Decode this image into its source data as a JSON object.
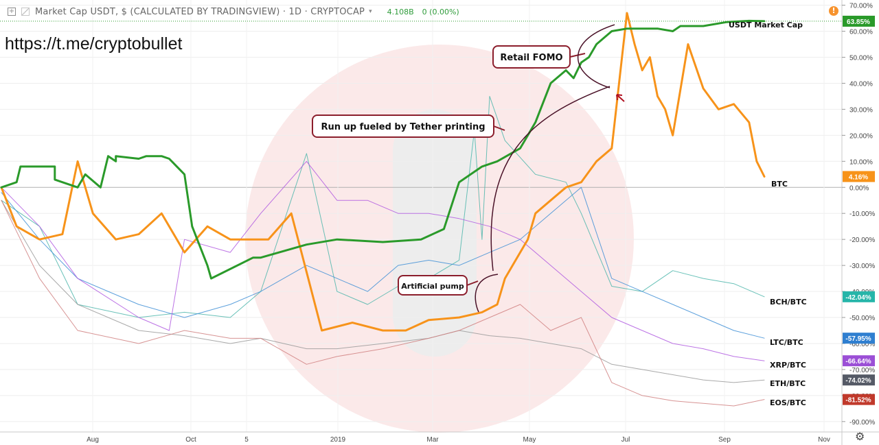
{
  "header": {
    "symbol": "Market Cap USDT, $ (CALCULATED BY TRADINGVIEW) · 1D · CRYPTOCAP",
    "value": "4.108B",
    "change": "0 (0.00%)"
  },
  "alert_icon": "!",
  "watermark": "https://t.me/cryptobullet",
  "settings_icon": "gear-icon",
  "chart_data": {
    "type": "line",
    "x_ticks": [
      "Aug",
      "Oct",
      "5",
      "2019",
      "Mar",
      "May",
      "Jul",
      "Sep",
      "Nov"
    ],
    "y_ticks": [
      70,
      60,
      50,
      40,
      30,
      20,
      10,
      0,
      -10,
      -20,
      -30,
      -40,
      -50,
      -60,
      -70,
      -80,
      -90
    ],
    "y_unit": "%",
    "ylim": [
      -94,
      72
    ],
    "grid": true,
    "series": [
      {
        "name": "USDT Market Cap",
        "color": "#2a9a2a",
        "last_label": "63.85%",
        "label_color": "#2a9a2a",
        "x": [
          0,
          0.02,
          0.025,
          0.07,
          0.07,
          0.1,
          0.11,
          0.13,
          0.14,
          0.15,
          0.15,
          0.18,
          0.19,
          0.21,
          0.22,
          0.24,
          0.25,
          0.27,
          0.275,
          0.33,
          0.34,
          0.4,
          0.44,
          0.5,
          0.55,
          0.58,
          0.6,
          0.63,
          0.65,
          0.68,
          0.7,
          0.72,
          0.74,
          0.75,
          0.76,
          0.77,
          0.78,
          0.8,
          0.82,
          0.84,
          0.86,
          0.88,
          0.89,
          0.9,
          0.92,
          0.95,
          0.98,
          1.0
        ],
        "y": [
          0,
          2,
          8,
          8,
          3,
          0,
          5,
          0,
          12,
          10,
          12,
          11,
          12,
          12,
          11,
          5,
          -15,
          -30,
          -35,
          -27,
          -27,
          -22,
          -20,
          -21,
          -20,
          -16,
          2,
          8,
          10,
          15,
          25,
          40,
          45,
          42,
          48,
          50,
          55,
          60,
          61,
          61,
          61,
          60,
          62,
          62,
          62,
          63.5,
          64,
          63.85
        ]
      },
      {
        "name": "BTC",
        "color": "#f7931a",
        "last_label": "4.16%",
        "label_color": "#f7931a",
        "x": [
          0,
          0.02,
          0.05,
          0.08,
          0.1,
          0.12,
          0.15,
          0.18,
          0.21,
          0.24,
          0.27,
          0.3,
          0.33,
          0.35,
          0.38,
          0.42,
          0.46,
          0.5,
          0.53,
          0.56,
          0.6,
          0.63,
          0.65,
          0.66,
          0.67,
          0.68,
          0.69,
          0.7,
          0.72,
          0.74,
          0.76,
          0.78,
          0.8,
          0.82,
          0.83,
          0.84,
          0.85,
          0.86,
          0.87,
          0.88,
          0.9,
          0.92,
          0.94,
          0.96,
          0.98,
          0.99,
          1.0
        ],
        "y": [
          0,
          -15,
          -20,
          -18,
          10,
          -10,
          -20,
          -18,
          -10,
          -25,
          -15,
          -20,
          -20,
          -20,
          -10,
          -55,
          -52,
          -55,
          -55,
          -51,
          -50,
          -48,
          -45,
          -35,
          -30,
          -25,
          -20,
          -10,
          -5,
          0,
          2,
          10,
          15,
          67,
          55,
          45,
          50,
          35,
          30,
          20,
          55,
          38,
          30,
          32,
          25,
          10,
          4.16
        ]
      },
      {
        "name": "BCH/BTC",
        "color": "#4db6ac",
        "last_label": "-42.04%",
        "label_color": "#26b5a9",
        "x": [
          0,
          0.05,
          0.1,
          0.18,
          0.24,
          0.3,
          0.34,
          0.4,
          0.44,
          0.48,
          0.52,
          0.56,
          0.6,
          0.62,
          0.63,
          0.64,
          0.66,
          0.7,
          0.74,
          0.76,
          0.8,
          0.84,
          0.88,
          0.92,
          0.96,
          1.0
        ],
        "y": [
          -5,
          -15,
          -45,
          -50,
          -48,
          -50,
          -40,
          13,
          -40,
          -45,
          -38,
          -35,
          -28,
          22,
          -20,
          35,
          18,
          5,
          2,
          -10,
          -38,
          -40,
          -32,
          -35,
          -37,
          -42.04
        ]
      },
      {
        "name": "LTC/BTC",
        "color": "#3f8fd6",
        "last_label": "-57.95%",
        "label_color": "#2f7fd0",
        "x": [
          0,
          0.05,
          0.1,
          0.18,
          0.24,
          0.3,
          0.34,
          0.4,
          0.44,
          0.48,
          0.52,
          0.56,
          0.6,
          0.64,
          0.68,
          0.72,
          0.76,
          0.8,
          0.84,
          0.88,
          0.92,
          0.96,
          1.0
        ],
        "y": [
          -2,
          -20,
          -35,
          -45,
          -50,
          -45,
          -40,
          -30,
          -35,
          -40,
          -30,
          -28,
          -30,
          -25,
          -20,
          -10,
          0,
          -35,
          -40,
          -45,
          -50,
          -55,
          -57.95
        ]
      },
      {
        "name": "XRP/BTC",
        "color": "#b05be0",
        "last_label": "-66.64%",
        "label_color": "#9b4fd6",
        "x": [
          0,
          0.05,
          0.1,
          0.18,
          0.22,
          0.24,
          0.3,
          0.34,
          0.4,
          0.44,
          0.48,
          0.52,
          0.56,
          0.6,
          0.64,
          0.68,
          0.72,
          0.76,
          0.8,
          0.84,
          0.88,
          0.92,
          0.96,
          1.0
        ],
        "y": [
          0,
          -15,
          -35,
          -50,
          -55,
          -20,
          -25,
          -10,
          10,
          -5,
          -5,
          -10,
          -10,
          -12,
          -15,
          -20,
          -30,
          -40,
          -50,
          -55,
          -60,
          -62,
          -65,
          -66.64
        ]
      },
      {
        "name": "ETH/BTC",
        "color": "#9a9a9a",
        "last_label": "-74.02%",
        "label_color": "#555a66",
        "x": [
          0,
          0.05,
          0.1,
          0.18,
          0.24,
          0.3,
          0.34,
          0.4,
          0.44,
          0.5,
          0.56,
          0.6,
          0.64,
          0.68,
          0.72,
          0.76,
          0.8,
          0.84,
          0.88,
          0.92,
          0.96,
          1.0
        ],
        "y": [
          -5,
          -30,
          -45,
          -55,
          -57,
          -60,
          -58,
          -62,
          -62,
          -60,
          -58,
          -55,
          -57,
          -58,
          -60,
          -62,
          -68,
          -70,
          -72,
          -74,
          -75,
          -74.02
        ]
      },
      {
        "name": "EOS/BTC",
        "color": "#d08080",
        "last_label": "-81.52%",
        "label_color": "#c0392b",
        "x": [
          0,
          0.05,
          0.1,
          0.18,
          0.24,
          0.3,
          0.34,
          0.4,
          0.44,
          0.5,
          0.56,
          0.6,
          0.64,
          0.68,
          0.72,
          0.76,
          0.8,
          0.84,
          0.88,
          0.92,
          0.96,
          1.0
        ],
        "y": [
          -5,
          -35,
          -55,
          -60,
          -55,
          -58,
          -58,
          -68,
          -65,
          -62,
          -58,
          -55,
          -50,
          -45,
          -55,
          -50,
          -75,
          -80,
          -82,
          -83,
          -84,
          -81.52
        ]
      }
    ],
    "annotations": [
      "Retail FOMO",
      "Run up fueled by Tether printing",
      "Artificial pump"
    ]
  }
}
